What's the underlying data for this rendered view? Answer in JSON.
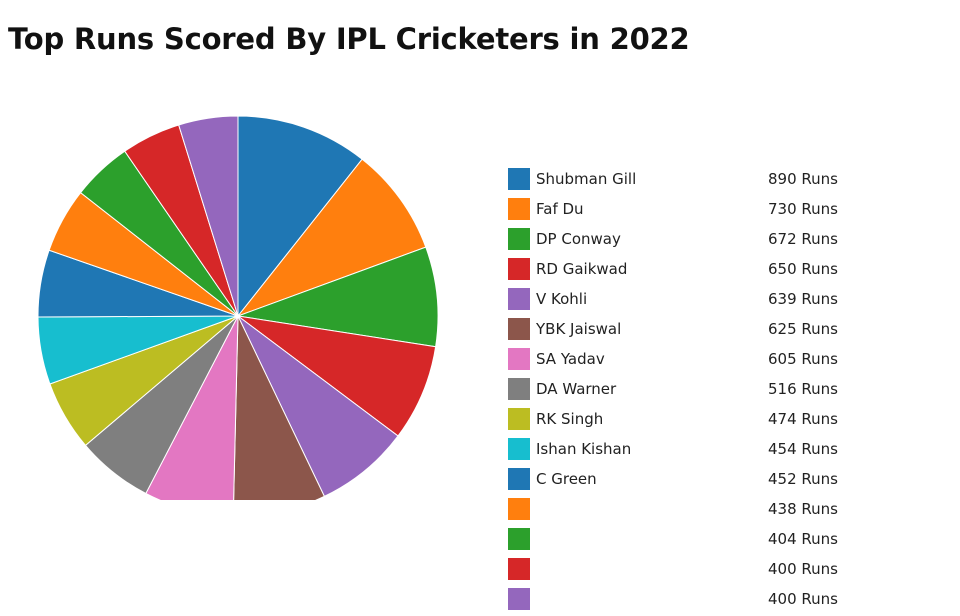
{
  "chart_data": {
    "type": "pie",
    "title": "Top Runs Scored By IPL Cricketers in 2022",
    "value_suffix": " Runs",
    "slices": [
      {
        "label": "Shubman Gill",
        "value": 890,
        "color": "#1f77b4"
      },
      {
        "label": "Faf Du",
        "value": 730,
        "color": "#ff7f0e"
      },
      {
        "label": "DP Conway",
        "value": 672,
        "color": "#2ca02c"
      },
      {
        "label": "RD Gaikwad",
        "value": 650,
        "color": "#d62728"
      },
      {
        "label": "V Kohli",
        "value": 639,
        "color": "#9467bd"
      },
      {
        "label": "YBK Jaiswal",
        "value": 625,
        "color": "#8c564b"
      },
      {
        "label": "SA Yadav",
        "value": 605,
        "color": "#e377c2"
      },
      {
        "label": "DA Warner",
        "value": 516,
        "color": "#7f7f7f"
      },
      {
        "label": "RK Singh",
        "value": 474,
        "color": "#bcbd22"
      },
      {
        "label": "Ishan Kishan",
        "value": 454,
        "color": "#17becf"
      },
      {
        "label": "C Green",
        "value": 452,
        "color": "#1f77b4"
      },
      {
        "label": "",
        "value": 438,
        "color": "#ff7f0e"
      },
      {
        "label": "",
        "value": 404,
        "color": "#2ca02c"
      },
      {
        "label": "",
        "value": 400,
        "color": "#d62728"
      },
      {
        "label": "",
        "value": 400,
        "color": "#9467bd"
      }
    ],
    "legend_placement": "right"
  }
}
